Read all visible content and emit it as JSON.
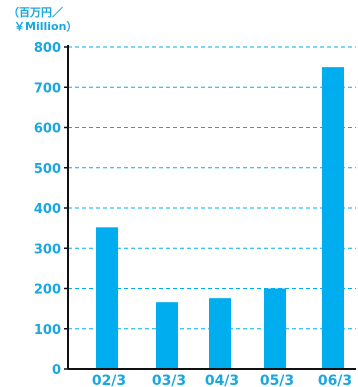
{
  "unit_label": {
    "line1": "（百万円／",
    "line2": "￥Million）"
  },
  "colors": {
    "bar": "#00aeef",
    "text": "#1aa7e0",
    "axis": "#111111"
  },
  "chart_data": {
    "type": "bar",
    "categories": [
      "02/3",
      "03/3",
      "04/3",
      "05/3",
      "06/3"
    ],
    "values": [
      352,
      166,
      176,
      200,
      750
    ],
    "yticks": [
      0,
      100,
      200,
      300,
      400,
      500,
      600,
      700,
      800
    ],
    "ylim": [
      0,
      800
    ],
    "grid": true,
    "title": "",
    "xlabel": "",
    "ylabel": "（百万円／￥Million）"
  }
}
